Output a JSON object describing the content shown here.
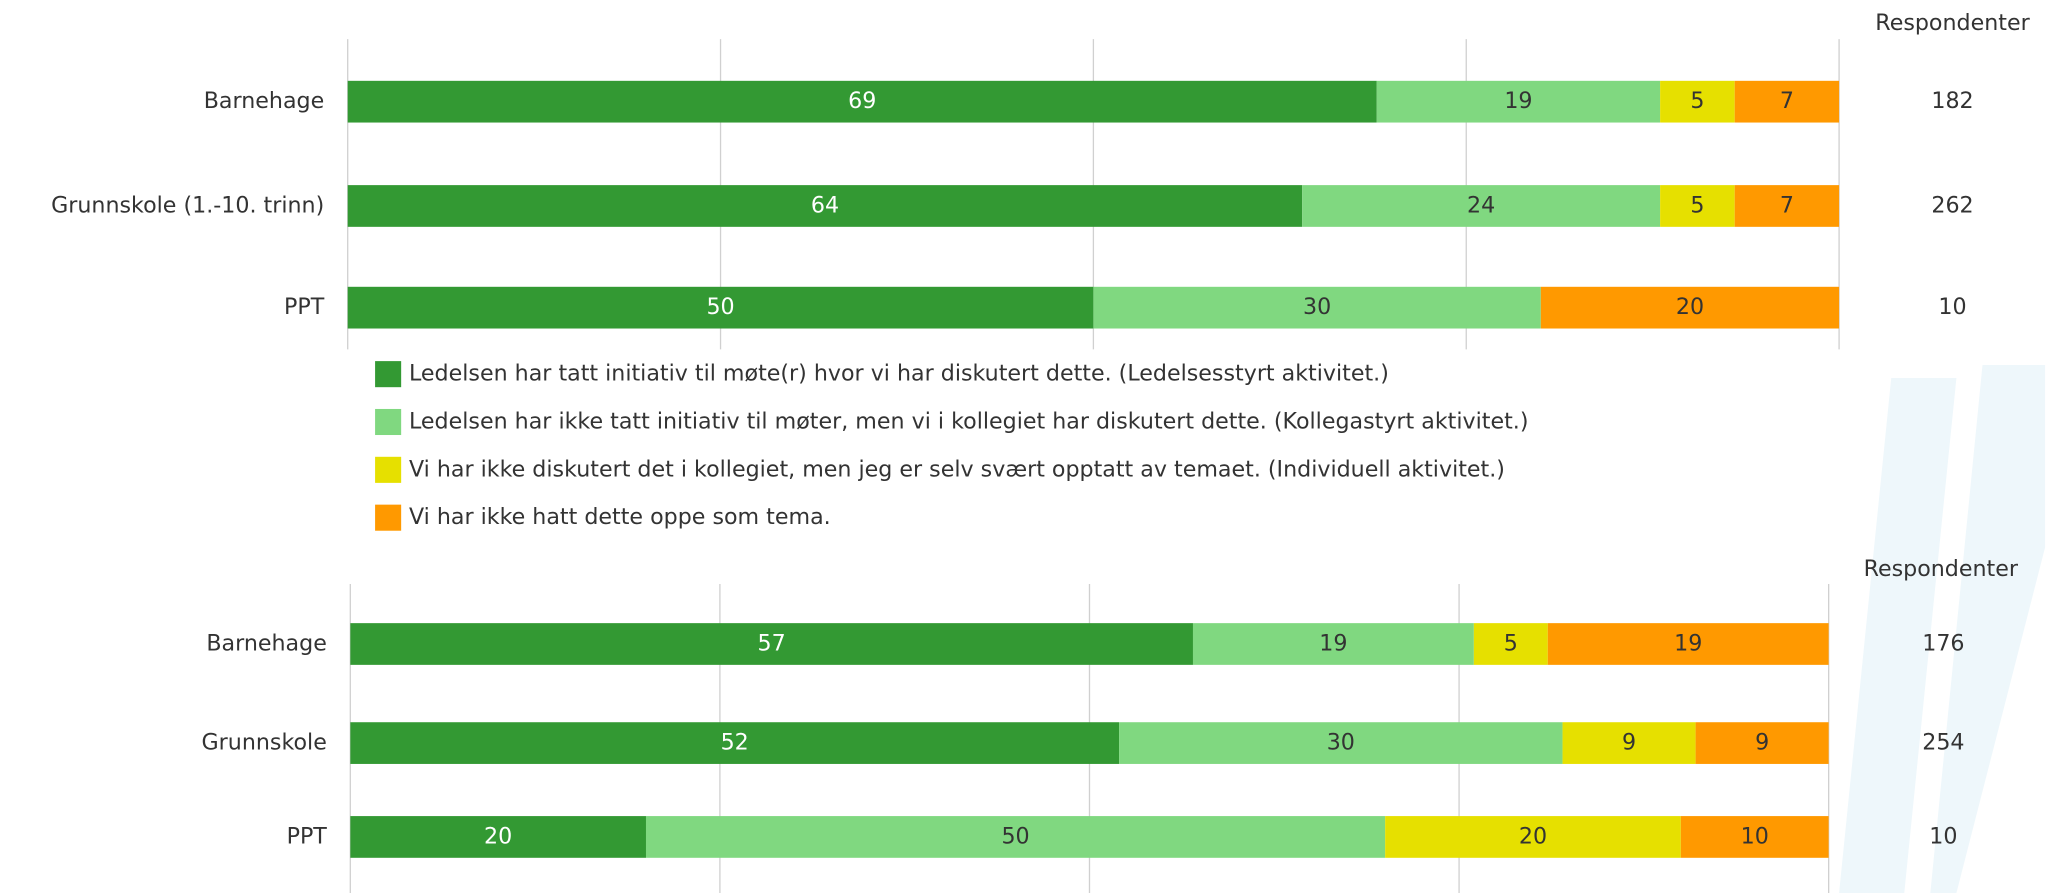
{
  "chart_data": [
    {
      "type": "bar",
      "orientation": "horizontal",
      "stacked": true,
      "categories": [
        "Barnehage",
        "Grunnskole (1.-10. trinn)",
        "PPT"
      ],
      "series": [
        {
          "name": "Ledelsen har tatt initiativ til møte(r) hvor vi har diskutert dette. (Ledelsesstyrt aktivitet.)",
          "color": "#339933",
          "values": [
            69,
            64,
            50
          ]
        },
        {
          "name": "Ledelsen har ikke tatt initiativ til møter, men vi i kollegiet har diskutert dette. (Kollegastyrt aktivitet.)",
          "color": "#80d880",
          "values": [
            19,
            24,
            30
          ]
        },
        {
          "name": "Vi har ikke diskutert det i kollegiet, men jeg er selv svært opptatt av temaet. (Individuell aktivitet.)",
          "color": "#e6e000",
          "values": [
            5,
            5,
            null
          ]
        },
        {
          "name": "Vi har ikke hatt dette oppe som tema.",
          "color": "#ff9900",
          "values": [
            7,
            7,
            20
          ]
        }
      ],
      "xlim": [
        0,
        100
      ],
      "xticks": [
        0,
        25,
        50,
        75,
        100
      ],
      "grid": true,
      "respondents_label": "Respondenter",
      "respondents": [
        182,
        262,
        10
      ]
    },
    {
      "type": "bar",
      "orientation": "horizontal",
      "stacked": true,
      "categories": [
        "Barnehage",
        "Grunnskole",
        "PPT"
      ],
      "series": [
        {
          "color": "#339933",
          "values": [
            57,
            52,
            20
          ]
        },
        {
          "color": "#80d880",
          "values": [
            19,
            30,
            50
          ]
        },
        {
          "color": "#e6e000",
          "values": [
            5,
            9,
            20
          ]
        },
        {
          "color": "#ff9900",
          "values": [
            19,
            9,
            10
          ]
        }
      ],
      "xlim": [
        0,
        100
      ],
      "xticks": [
        0,
        25,
        50,
        75,
        100
      ],
      "grid": true,
      "respondents_label": "Respondenter",
      "respondents": [
        176,
        254,
        10
      ]
    }
  ]
}
